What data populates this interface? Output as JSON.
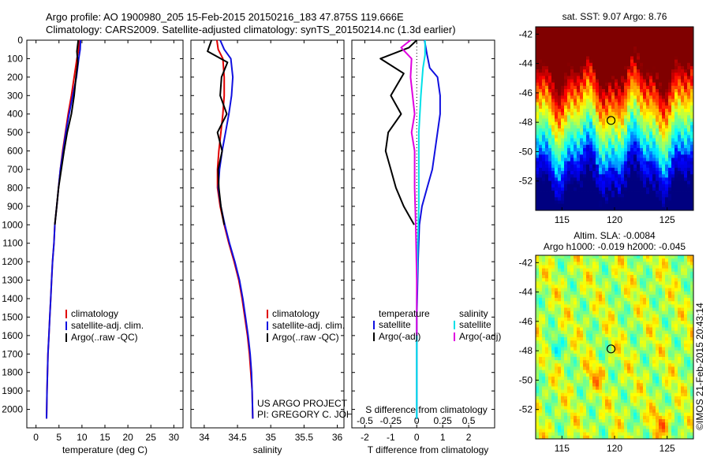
{
  "header": {
    "title_line1": "Argo profile: AO 1900980_205 15-Feb-2015 20150216_183 47.875S 119.666E",
    "title_line2": "Climatology: CARS2009. Satellite-adjusted climatology: synTS_20150214.nc (1.3d earlier)"
  },
  "colors": {
    "climatology": "#e00000",
    "satellite": "#1010e0",
    "argo": "#000000",
    "salinity_satellite": "#00e0e8",
    "salinity_argo": "#e000e0"
  },
  "chart_data": [
    {
      "type": "line",
      "name": "temperature-profile",
      "xlabel": "temperature (deg C)",
      "xlim": [
        -2,
        32
      ],
      "xticks": [
        0,
        5,
        10,
        15,
        20,
        25,
        30
      ],
      "ylim": [
        0,
        2100
      ],
      "yticks": [
        0,
        100,
        200,
        300,
        400,
        500,
        600,
        700,
        800,
        900,
        1000,
        1100,
        1200,
        1300,
        1400,
        1500,
        1600,
        1700,
        1800,
        1900,
        2000
      ],
      "inverted_y": true,
      "legend": {
        "position": "lower-right",
        "labels": [
          "climatology",
          "satellite-adj. clim.",
          "Argo(..raw -QC)"
        ]
      },
      "series": [
        {
          "name": "climatology",
          "color": "#e00000",
          "x": [
            9.4,
            9.3,
            8.9,
            8.3,
            7.7,
            7.0,
            6.4,
            5.8,
            5.3,
            4.9,
            4.5,
            4.1,
            3.9,
            3.6,
            3.4,
            3.2,
            3.0,
            2.8,
            2.6,
            2.5,
            2.4,
            2.3
          ],
          "y": [
            0,
            50,
            100,
            200,
            300,
            400,
            500,
            600,
            700,
            800,
            900,
            1000,
            1100,
            1200,
            1300,
            1400,
            1500,
            1600,
            1700,
            1800,
            1900,
            2050
          ]
        },
        {
          "name": "satellite-adj. clim.",
          "color": "#1010e0",
          "x": [
            9.7,
            9.6,
            9.3,
            8.8,
            8.0,
            7.2,
            6.5,
            5.9,
            5.3,
            4.9,
            4.5,
            4.1,
            3.9,
            3.6,
            3.4,
            3.2,
            3.0,
            2.8,
            2.6,
            2.5,
            2.4,
            2.3
          ],
          "y": [
            0,
            50,
            100,
            200,
            300,
            400,
            500,
            600,
            700,
            800,
            900,
            1000,
            1100,
            1200,
            1300,
            1400,
            1500,
            1600,
            1700,
            1800,
            1900,
            2050
          ]
        },
        {
          "name": "Argo(..raw -QC)",
          "color": "#000000",
          "x": [
            9.2,
            8.9,
            9.1,
            8.7,
            8.3,
            7.7,
            6.8,
            6.1,
            5.5,
            4.9,
            4.5,
            4.1
          ],
          "y": [
            0,
            60,
            120,
            200,
            300,
            400,
            500,
            600,
            700,
            800,
            900,
            1000
          ]
        }
      ]
    },
    {
      "type": "line",
      "name": "salinity-profile",
      "xlabel": "salinity",
      "xlim": [
        33.8,
        36.1
      ],
      "xticks": [
        34,
        34.5,
        35,
        35.5,
        36
      ],
      "ylim": [
        0,
        2100
      ],
      "inverted_y": true,
      "legend": {
        "position": "lower-right",
        "labels": [
          "climatology",
          "satellite-adj. clim.",
          "Argo(..raw -QC)"
        ]
      },
      "annotation": [
        "US ARGO PROJECT",
        "PI: GREGORY C. JOHNSON"
      ],
      "series": [
        {
          "name": "climatology",
          "color": "#e00000",
          "x": [
            34.19,
            34.21,
            34.28,
            34.3,
            34.3,
            34.28,
            34.25,
            34.22,
            34.2,
            34.2,
            34.24,
            34.3,
            34.37,
            34.45,
            34.52,
            34.57,
            34.61,
            34.65,
            34.68,
            34.7,
            34.72,
            34.73
          ],
          "y": [
            0,
            50,
            100,
            200,
            300,
            400,
            500,
            600,
            700,
            800,
            900,
            1000,
            1100,
            1200,
            1300,
            1400,
            1500,
            1600,
            1700,
            1800,
            1900,
            2050
          ]
        },
        {
          "name": "satellite-adj. clim.",
          "color": "#1010e0",
          "x": [
            34.24,
            34.3,
            34.4,
            34.43,
            34.41,
            34.37,
            34.32,
            34.27,
            34.23,
            34.21,
            34.25,
            34.31,
            34.38,
            34.46,
            34.53,
            34.58,
            34.62,
            34.66,
            34.69,
            34.71,
            34.72,
            34.73
          ],
          "y": [
            0,
            50,
            100,
            200,
            300,
            400,
            500,
            600,
            700,
            800,
            900,
            1000,
            1100,
            1200,
            1300,
            1400,
            1500,
            1600,
            1700,
            1800,
            1900,
            2050
          ]
        },
        {
          "name": "Argo(..raw -QC)",
          "color": "#000000",
          "x": [
            34.11,
            34.05,
            34.35,
            34.26,
            34.24,
            34.34,
            34.2,
            34.27,
            34.21,
            34.22,
            34.25,
            34.3
          ],
          "y": [
            0,
            60,
            120,
            200,
            300,
            400,
            500,
            600,
            700,
            800,
            900,
            1000
          ]
        }
      ]
    },
    {
      "type": "line",
      "name": "difference-profile",
      "xlabel": "T difference from climatology",
      "xlabel_top": "S difference from climatology",
      "xlim": [
        -2.5,
        3.0
      ],
      "xticks": [
        -2,
        -1,
        0,
        1,
        2
      ],
      "xticks_salinity": [
        "-0.5",
        "-0.25",
        "0",
        "0.25",
        "0.5"
      ],
      "ylim": [
        0,
        2100
      ],
      "inverted_y": true,
      "legend": {
        "temperature_title": "temperature",
        "salinity_title": "salinity",
        "labels": [
          "satellite",
          "Argo(-adj)",
          "satellite",
          "Argo(-adj)"
        ]
      },
      "series": [
        {
          "name": "satellite",
          "group": "temperature",
          "color": "#1010e0",
          "x": [
            0.3,
            0.4,
            0.5,
            0.8,
            0.9,
            0.9,
            0.8,
            0.7,
            0.6,
            0.4,
            0.2,
            0.1,
            0.05,
            0.0,
            0.0,
            0.0
          ],
          "y": [
            0,
            80,
            150,
            200,
            300,
            400,
            500,
            600,
            700,
            800,
            900,
            1000,
            1200,
            1500,
            1800,
            2050
          ]
        },
        {
          "name": "Argo(-adj)",
          "group": "temperature",
          "color": "#000000",
          "x": [
            0.0,
            -0.3,
            -1.4,
            -0.5,
            -1.0,
            -0.6,
            -1.1,
            -1.2,
            -1.0,
            -0.8,
            -0.5,
            -0.1
          ],
          "y": [
            0,
            40,
            100,
            180,
            300,
            400,
            500,
            600,
            700,
            800,
            900,
            1000
          ]
        },
        {
          "name": "satellite",
          "group": "salinity",
          "color": "#00e0e8",
          "x": [
            0.08,
            0.08,
            0.06,
            0.04,
            0.02,
            0.02,
            0.02,
            0.01,
            0.0,
            0.0,
            0.0,
            0.0
          ],
          "y": [
            0,
            80,
            150,
            300,
            500,
            700,
            900,
            1100,
            1400,
            1600,
            1800,
            2050
          ]
        },
        {
          "name": "Argo(-adj)",
          "group": "salinity",
          "color": "#e000e0",
          "x": [
            -0.06,
            -0.15,
            -0.05,
            -0.06,
            -0.02,
            -0.05,
            -0.02,
            -0.02,
            -0.01,
            0.0,
            0.0
          ],
          "y": [
            0,
            40,
            100,
            200,
            400,
            500,
            600,
            800,
            1000,
            1300,
            1600
          ]
        }
      ]
    },
    {
      "type": "heatmap",
      "name": "sst-map",
      "title": "sat. SST: 9.07 Argo: 8.76",
      "xlim": [
        112.5,
        127.5
      ],
      "ylim": [
        -54,
        -41.5
      ],
      "xticks": [
        115,
        120,
        125
      ],
      "yticks": [
        -42,
        -44,
        -46,
        -48,
        -50,
        -52
      ],
      "marker": {
        "lon": 119.666,
        "lat": -47.875
      }
    },
    {
      "type": "heatmap",
      "name": "sla-map",
      "title": "Altim. SLA: -0.0084",
      "subtitle": "Argo h1000: -0.019 h2000: -0.045",
      "xlim": [
        112.5,
        127.5
      ],
      "ylim": [
        -54,
        -41.5
      ],
      "xticks": [
        115,
        120,
        125
      ],
      "yticks": [
        -42,
        -44,
        -46,
        -48,
        -50,
        -52
      ],
      "marker": {
        "lon": 119.666,
        "lat": -47.875
      },
      "side_label": "©IMOS 21-Feb-2015 20:43:14"
    }
  ]
}
